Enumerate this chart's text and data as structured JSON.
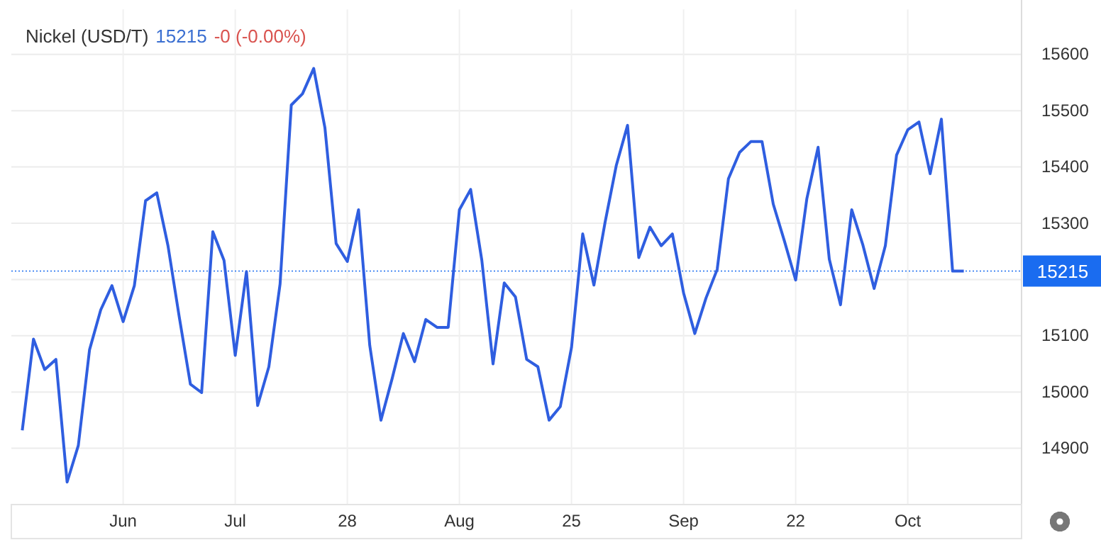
{
  "chart_data": {
    "type": "line",
    "title": "Nickel (USD/T)",
    "annotations": [
      "15215",
      "-0 (-0.00%)"
    ],
    "categories": [
      null,
      null,
      null,
      null,
      null,
      null,
      null,
      null,
      null,
      "Jun",
      null,
      null,
      null,
      null,
      null,
      null,
      null,
      null,
      null,
      "Jul",
      null,
      null,
      null,
      null,
      null,
      null,
      null,
      null,
      null,
      "28",
      null,
      null,
      null,
      null,
      null,
      null,
      null,
      null,
      null,
      "Aug",
      null,
      null,
      null,
      null,
      null,
      null,
      null,
      null,
      null,
      "25",
      null,
      null,
      null,
      null,
      null,
      null,
      null,
      null,
      null,
      "Sep",
      null,
      null,
      null,
      null,
      null,
      null,
      null,
      null,
      null,
      "22",
      null,
      null,
      null,
      null,
      null,
      null,
      null,
      null,
      null,
      "Oct",
      null,
      null,
      null,
      null,
      null
    ],
    "series": [
      {
        "color": "#2f5ee0",
        "values": [
          14932,
          15094,
          15040,
          15058,
          14840,
          14905,
          15075,
          15146,
          15189,
          15125,
          15189,
          15340,
          15354,
          15260,
          15134,
          15014,
          14999,
          15285,
          15234,
          15065,
          15214,
          14976,
          15045,
          15192,
          15510,
          15530,
          15575,
          15470,
          15264,
          15232,
          15324,
          15083,
          14950,
          15024,
          15104,
          15054,
          15129,
          15115,
          15115,
          15324,
          15360,
          15234,
          15050,
          15194,
          15169,
          15058,
          15045,
          14950,
          14974,
          15079,
          15281,
          15190,
          15302,
          15403,
          15474,
          15239,
          15293,
          15260,
          15281,
          15176,
          15104,
          15167,
          15218,
          15379,
          15426,
          15445,
          15445,
          15334,
          15268,
          15199,
          15344,
          15435,
          15236,
          15155,
          15324,
          15261,
          15184,
          15260,
          15421,
          15466,
          15480,
          15388,
          15485,
          15215,
          15215
        ]
      }
    ],
    "ylim": [
      14800,
      15680
    ],
    "yticks": [
      14900,
      15000,
      15100,
      {
        "value": 15200,
        "label": null
      },
      15300,
      15400,
      15500,
      15600
    ],
    "grid": true,
    "marker": "none",
    "line_style": "solid",
    "ref_lines": [
      {
        "axis": "y",
        "value": 15215,
        "label": "15215",
        "color": "#1a6cf0",
        "line_style": "dotted"
      }
    ]
  }
}
